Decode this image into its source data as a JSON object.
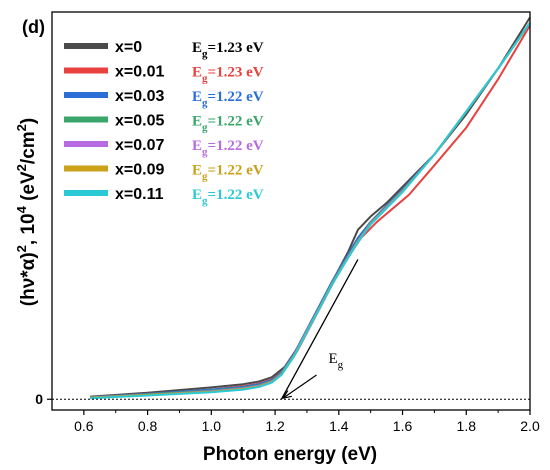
{
  "chart_data": {
    "type": "line",
    "panel_label": "(d)",
    "xlabel": "Photon energy (eV)",
    "ylabel_parts": {
      "part1": "(hν*α)",
      "sup1": "2",
      "part2": ", 10",
      "sup2": "4",
      "part3": " (eV",
      "sup3": "2",
      "part4": "/cm",
      "sup4": "2",
      "part5": ")"
    },
    "xlim": [
      0.5,
      2.0
    ],
    "ylim": [
      -0.2,
      7.2
    ],
    "x_ticks": [
      "0.6",
      "0.8",
      "1.0",
      "1.2",
      "1.4",
      "1.6",
      "1.8",
      "2.0"
    ],
    "x_tick_values": [
      0.6,
      0.8,
      1.0,
      1.2,
      1.4,
      1.6,
      1.8,
      2.0
    ],
    "y_ticks": [
      "0"
    ],
    "y_tick_values": [
      0
    ],
    "baseline": {
      "style": "dotted",
      "y": 0
    },
    "tangent_line": {
      "x": [
        1.22,
        1.46
      ],
      "y": [
        0.0,
        2.6
      ]
    },
    "annotation": {
      "text_main": "E",
      "text_sub": "g",
      "arrow_from": [
        1.33,
        0.45
      ],
      "arrow_to": [
        1.225,
        0.02
      ]
    },
    "series": [
      {
        "name": "x=0",
        "eg_main": "E",
        "eg_sub": "g",
        "eg_value": "=1.23 eV",
        "color": "#4a4a4a",
        "x": [
          0.62,
          0.8,
          1.0,
          1.1,
          1.15,
          1.19,
          1.23,
          1.27,
          1.31,
          1.35,
          1.39,
          1.43,
          1.46,
          1.5,
          1.55,
          1.6,
          1.7,
          1.8,
          1.9,
          2.0
        ],
        "y": [
          0.05,
          0.12,
          0.22,
          0.28,
          0.33,
          0.41,
          0.6,
          0.95,
          1.4,
          1.85,
          2.3,
          2.75,
          3.15,
          3.4,
          3.65,
          3.95,
          4.55,
          5.3,
          6.15,
          7.1
        ]
      },
      {
        "name": "x=0.01",
        "eg_main": "E",
        "eg_sub": "g",
        "eg_value": "=1.23 eV",
        "color": "#e8413e",
        "x": [
          0.62,
          0.8,
          1.0,
          1.1,
          1.15,
          1.19,
          1.23,
          1.27,
          1.31,
          1.35,
          1.39,
          1.43,
          1.47,
          1.52,
          1.57,
          1.62,
          1.7,
          1.8,
          1.9,
          2.0
        ],
        "y": [
          0.04,
          0.1,
          0.18,
          0.24,
          0.29,
          0.37,
          0.55,
          0.9,
          1.35,
          1.8,
          2.25,
          2.65,
          3.0,
          3.3,
          3.55,
          3.8,
          4.35,
          5.05,
          5.95,
          6.95
        ]
      },
      {
        "name": "x=0.03",
        "eg_main": "E",
        "eg_sub": "g",
        "eg_value": "=1.22 eV",
        "color": "#2a6fd6",
        "x": [
          0.62,
          0.8,
          1.0,
          1.1,
          1.15,
          1.19,
          1.22,
          1.26,
          1.3,
          1.34,
          1.38,
          1.42,
          1.46,
          1.5,
          1.55,
          1.6,
          1.7,
          1.8,
          1.9,
          2.0
        ],
        "y": [
          0.04,
          0.1,
          0.18,
          0.23,
          0.28,
          0.36,
          0.5,
          0.85,
          1.3,
          1.75,
          2.2,
          2.6,
          3.0,
          3.3,
          3.6,
          3.9,
          4.55,
          5.35,
          6.15,
          7.0
        ]
      },
      {
        "name": "x=0.05",
        "eg_main": "E",
        "eg_sub": "g",
        "eg_value": "=1.22 eV",
        "color": "#3aa66a",
        "x": [
          0.62,
          0.8,
          1.0,
          1.1,
          1.15,
          1.19,
          1.22,
          1.26,
          1.3,
          1.34,
          1.38,
          1.42,
          1.46,
          1.5,
          1.55,
          1.6,
          1.7,
          1.8,
          1.9,
          2.0
        ],
        "y": [
          0.03,
          0.09,
          0.16,
          0.21,
          0.26,
          0.34,
          0.48,
          0.83,
          1.28,
          1.72,
          2.17,
          2.57,
          2.95,
          3.28,
          3.58,
          3.88,
          4.55,
          5.35,
          6.15,
          7.0
        ]
      },
      {
        "name": "x=0.07",
        "eg_main": "E",
        "eg_sub": "g",
        "eg_value": "=1.22 eV",
        "color": "#b86be0",
        "x": [
          0.62,
          0.8,
          1.0,
          1.1,
          1.15,
          1.19,
          1.22,
          1.26,
          1.3,
          1.34,
          1.38,
          1.42,
          1.46,
          1.5,
          1.55,
          1.6,
          1.7,
          1.8,
          1.9,
          2.0
        ],
        "y": [
          0.03,
          0.08,
          0.15,
          0.2,
          0.25,
          0.33,
          0.47,
          0.82,
          1.27,
          1.71,
          2.16,
          2.56,
          2.94,
          3.27,
          3.57,
          3.87,
          4.55,
          5.35,
          6.15,
          7.0
        ]
      },
      {
        "name": "x=0.09",
        "eg_main": "E",
        "eg_sub": "g",
        "eg_value": "=1.22 eV",
        "color": "#c9a21a",
        "x": [
          0.62,
          0.8,
          1.0,
          1.1,
          1.15,
          1.19,
          1.22,
          1.26,
          1.3,
          1.34,
          1.38,
          1.42,
          1.46,
          1.5,
          1.55,
          1.6,
          1.7,
          1.8,
          1.9,
          2.0
        ],
        "y": [
          0.03,
          0.08,
          0.14,
          0.19,
          0.24,
          0.32,
          0.46,
          0.81,
          1.26,
          1.7,
          2.15,
          2.55,
          2.93,
          3.26,
          3.56,
          3.86,
          4.55,
          5.35,
          6.15,
          7.0
        ]
      },
      {
        "name": "x=0.11",
        "eg_main": "E",
        "eg_sub": "g",
        "eg_value": "=1.22 eV",
        "color": "#29c9d6",
        "x": [
          0.62,
          0.8,
          1.0,
          1.1,
          1.15,
          1.19,
          1.22,
          1.26,
          1.3,
          1.34,
          1.38,
          1.42,
          1.46,
          1.5,
          1.55,
          1.6,
          1.7,
          1.8,
          1.9,
          2.0
        ],
        "y": [
          0.02,
          0.07,
          0.13,
          0.18,
          0.23,
          0.31,
          0.45,
          0.8,
          1.25,
          1.69,
          2.14,
          2.54,
          2.92,
          3.25,
          3.55,
          3.85,
          4.55,
          5.35,
          6.15,
          7.0
        ]
      }
    ]
  }
}
